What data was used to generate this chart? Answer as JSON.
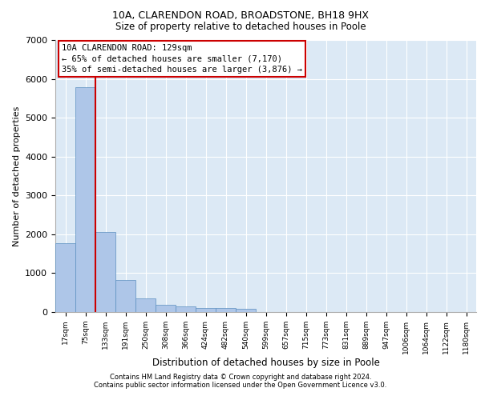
{
  "title1": "10A, CLARENDON ROAD, BROADSTONE, BH18 9HX",
  "title2": "Size of property relative to detached houses in Poole",
  "xlabel": "Distribution of detached houses by size in Poole",
  "ylabel": "Number of detached properties",
  "bar_labels": [
    "17sqm",
    "75sqm",
    "133sqm",
    "191sqm",
    "250sqm",
    "308sqm",
    "366sqm",
    "424sqm",
    "482sqm",
    "540sqm",
    "599sqm",
    "657sqm",
    "715sqm",
    "773sqm",
    "831sqm",
    "889sqm",
    "947sqm",
    "1006sqm",
    "1064sqm",
    "1122sqm",
    "1180sqm"
  ],
  "bar_values": [
    1780,
    5780,
    2060,
    820,
    340,
    195,
    140,
    110,
    100,
    80,
    0,
    0,
    0,
    0,
    0,
    0,
    0,
    0,
    0,
    0,
    0
  ],
  "bar_color": "#aec6e8",
  "bar_edge_color": "#5a8fc0",
  "vline_x_index": 1.5,
  "vline_color": "#cc0000",
  "annotation_text": "10A CLARENDON ROAD: 129sqm\n← 65% of detached houses are smaller (7,170)\n35% of semi-detached houses are larger (3,876) →",
  "annotation_box_color": "#cc0000",
  "ylim": [
    0,
    7000
  ],
  "yticks": [
    0,
    1000,
    2000,
    3000,
    4000,
    5000,
    6000,
    7000
  ],
  "background_color": "#dce9f5",
  "grid_color": "#ffffff",
  "footer1": "Contains HM Land Registry data © Crown copyright and database right 2024.",
  "footer2": "Contains public sector information licensed under the Open Government Licence v3.0."
}
